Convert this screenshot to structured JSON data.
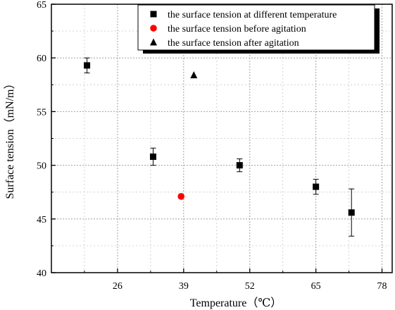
{
  "chart_data": {
    "type": "scatter",
    "title": "",
    "xlabel": "Temperature（℃）",
    "ylabel": "Surface tension（mN/m）",
    "xlim": [
      13,
      80
    ],
    "ylim": [
      40,
      65
    ],
    "xticks": [
      26,
      39,
      52,
      65,
      78
    ],
    "yticks": [
      40,
      45,
      50,
      55,
      60,
      65
    ],
    "grid": true,
    "legend_position": "top-right",
    "series": [
      {
        "name": "the surface tension at different temperature",
        "marker": "square",
        "color": "#000000",
        "points": [
          {
            "x": 20,
            "y": 59.3,
            "err": 0.7
          },
          {
            "x": 33,
            "y": 50.8,
            "err": 0.8
          },
          {
            "x": 50,
            "y": 50.0,
            "err": 0.6
          },
          {
            "x": 65,
            "y": 48.0,
            "err": 0.7
          },
          {
            "x": 72,
            "y": 45.6,
            "err": 2.2
          }
        ]
      },
      {
        "name": "the surface tension before agitation",
        "marker": "circle",
        "color": "#ff0000",
        "points": [
          {
            "x": 38.5,
            "y": 47.1
          }
        ]
      },
      {
        "name": "the surface tension after agitation",
        "marker": "triangle",
        "color": "#000000",
        "points": [
          {
            "x": 41,
            "y": 58.4
          }
        ]
      }
    ]
  }
}
